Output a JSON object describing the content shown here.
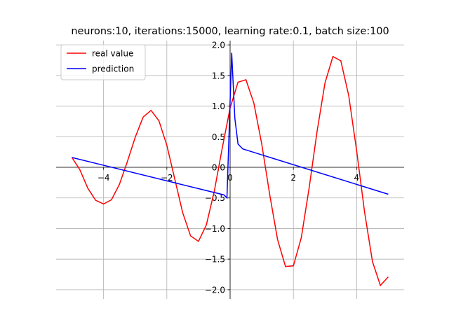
{
  "chart_data": {
    "type": "line",
    "title": "neurons:10, iterations:15000, learning rate:0.1, batch size:100",
    "series": [
      {
        "name": "real value",
        "color": "#ff0000",
        "x": [
          -5,
          -4.75,
          -4.5,
          -4.25,
          -4,
          -3.75,
          -3.5,
          -3.25,
          -3,
          -2.75,
          -2.5,
          -2.25,
          -2,
          -1.75,
          -1.5,
          -1.25,
          -1,
          -0.75,
          -0.5,
          -0.25,
          0,
          0.25,
          0.5,
          0.75,
          1,
          1.25,
          1.5,
          1.75,
          2,
          2.25,
          2.5,
          2.75,
          3,
          3.25,
          3.5,
          3.75,
          4,
          4.25,
          4.5,
          4.75,
          5
        ],
        "values": [
          0.16,
          -0.04,
          -0.34,
          -0.54,
          -0.6,
          -0.53,
          -0.28,
          0.09,
          0.49,
          0.82,
          0.93,
          0.76,
          0.36,
          -0.19,
          -0.74,
          -1.12,
          -1.21,
          -0.94,
          -0.39,
          0.31,
          0.97,
          1.39,
          1.43,
          1.05,
          0.38,
          -0.44,
          -1.18,
          -1.62,
          -1.61,
          -1.15,
          -0.33,
          0.59,
          1.38,
          1.81,
          1.74,
          1.17,
          0.27,
          -0.73,
          -1.54,
          -1.93,
          -1.79
        ]
      },
      {
        "name": "prediction",
        "color": "#0000ff",
        "x": [
          -5,
          -0.2,
          -0.1,
          0.05,
          0.15,
          0.25,
          0.4,
          5
        ],
        "values": [
          0.16,
          -0.45,
          -0.5,
          1.87,
          0.8,
          0.38,
          0.3,
          -0.44
        ]
      }
    ],
    "xlim": [
      -5.5,
      5.5
    ],
    "ylim": [
      -2.15,
      2.07
    ],
    "xticks": [
      {
        "value": -4,
        "label": "−4"
      },
      {
        "value": -2,
        "label": "−2"
      },
      0,
      2,
      4
    ],
    "yticks": [
      {
        "value": -2,
        "label": "−2.0"
      },
      {
        "value": -1.5,
        "label": "−1.5"
      },
      {
        "value": -1,
        "label": "−1.0"
      },
      {
        "value": -0.5,
        "label": "−0.5"
      },
      {
        "value": 0,
        "label": "0.0"
      },
      {
        "value": 0.5,
        "label": "0.5"
      },
      {
        "value": 1,
        "label": "1.0"
      },
      {
        "value": 1.5,
        "label": "1.5"
      },
      {
        "value": 2,
        "label": "2.0"
      }
    ],
    "grid": true,
    "legend": "upper left"
  }
}
